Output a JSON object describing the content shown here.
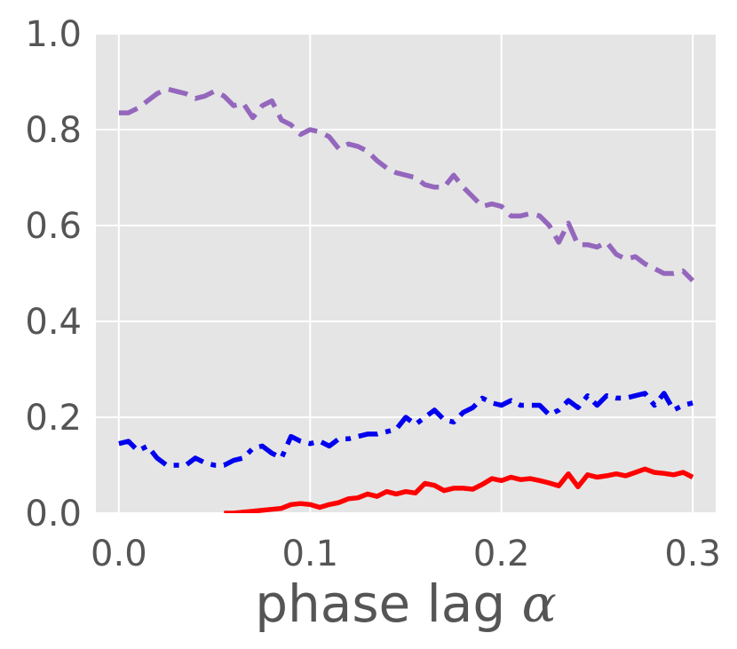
{
  "chart_data": {
    "type": "line",
    "title": "",
    "xlabel": "phase lag",
    "xlabel_symbol": "α",
    "ylabel": "",
    "xlim": [
      -0.012,
      0.312
    ],
    "ylim": [
      0.0,
      1.0
    ],
    "xticks": [
      "0.0",
      "0.1",
      "0.2",
      "0.3"
    ],
    "yticks": [
      "0.0",
      "0.2",
      "0.4",
      "0.6",
      "0.8",
      "1.0"
    ],
    "grid": true,
    "legend": "none",
    "background": "#e5e5e5",
    "series": [
      {
        "color": "#9467bd",
        "style": "dashed",
        "x": [
          0.0,
          0.005,
          0.01,
          0.015,
          0.02,
          0.025,
          0.03,
          0.035,
          0.04,
          0.045,
          0.05,
          0.055,
          0.06,
          0.065,
          0.07,
          0.075,
          0.08,
          0.085,
          0.09,
          0.095,
          0.1,
          0.105,
          0.11,
          0.115,
          0.12,
          0.125,
          0.13,
          0.135,
          0.14,
          0.145,
          0.15,
          0.155,
          0.16,
          0.165,
          0.17,
          0.175,
          0.18,
          0.185,
          0.19,
          0.195,
          0.2,
          0.205,
          0.21,
          0.215,
          0.22,
          0.225,
          0.23,
          0.235,
          0.24,
          0.245,
          0.25,
          0.255,
          0.26,
          0.265,
          0.27,
          0.275,
          0.28,
          0.285,
          0.29,
          0.295,
          0.3
        ],
        "y": [
          0.835,
          0.835,
          0.845,
          0.86,
          0.875,
          0.885,
          0.88,
          0.875,
          0.865,
          0.87,
          0.88,
          0.87,
          0.85,
          0.855,
          0.825,
          0.85,
          0.86,
          0.82,
          0.81,
          0.79,
          0.8,
          0.795,
          0.785,
          0.76,
          0.77,
          0.765,
          0.755,
          0.735,
          0.72,
          0.71,
          0.705,
          0.7,
          0.685,
          0.68,
          0.68,
          0.705,
          0.68,
          0.66,
          0.64,
          0.645,
          0.64,
          0.62,
          0.62,
          0.625,
          0.62,
          0.6,
          0.565,
          0.605,
          0.56,
          0.56,
          0.555,
          0.565,
          0.54,
          0.53,
          0.535,
          0.52,
          0.51,
          0.5,
          0.5,
          0.505,
          0.485
        ]
      },
      {
        "color": "#0000ee",
        "style": "dashdot",
        "x": [
          0.0,
          0.005,
          0.01,
          0.015,
          0.02,
          0.025,
          0.03,
          0.035,
          0.04,
          0.045,
          0.05,
          0.055,
          0.06,
          0.065,
          0.07,
          0.075,
          0.08,
          0.085,
          0.09,
          0.095,
          0.1,
          0.105,
          0.11,
          0.115,
          0.12,
          0.125,
          0.13,
          0.135,
          0.14,
          0.145,
          0.15,
          0.155,
          0.16,
          0.165,
          0.17,
          0.175,
          0.18,
          0.185,
          0.19,
          0.195,
          0.2,
          0.205,
          0.21,
          0.215,
          0.22,
          0.225,
          0.23,
          0.235,
          0.24,
          0.245,
          0.25,
          0.255,
          0.26,
          0.265,
          0.27,
          0.275,
          0.28,
          0.285,
          0.29,
          0.295,
          0.3
        ],
        "y": [
          0.145,
          0.15,
          0.13,
          0.14,
          0.115,
          0.1,
          0.1,
          0.1,
          0.115,
          0.105,
          0.1,
          0.1,
          0.11,
          0.115,
          0.135,
          0.14,
          0.125,
          0.115,
          0.16,
          0.15,
          0.145,
          0.15,
          0.14,
          0.155,
          0.155,
          0.16,
          0.165,
          0.165,
          0.17,
          0.175,
          0.2,
          0.185,
          0.2,
          0.215,
          0.195,
          0.19,
          0.21,
          0.22,
          0.24,
          0.23,
          0.225,
          0.235,
          0.225,
          0.225,
          0.225,
          0.205,
          0.215,
          0.235,
          0.22,
          0.245,
          0.225,
          0.245,
          0.24,
          0.24,
          0.245,
          0.25,
          0.225,
          0.25,
          0.215,
          0.225,
          0.23
        ]
      },
      {
        "color": "#ff0000",
        "style": "solid",
        "x": [
          0.055,
          0.06,
          0.065,
          0.07,
          0.075,
          0.08,
          0.085,
          0.09,
          0.095,
          0.1,
          0.105,
          0.11,
          0.115,
          0.12,
          0.125,
          0.13,
          0.135,
          0.14,
          0.145,
          0.15,
          0.155,
          0.16,
          0.165,
          0.17,
          0.175,
          0.18,
          0.185,
          0.19,
          0.195,
          0.2,
          0.205,
          0.21,
          0.215,
          0.22,
          0.225,
          0.23,
          0.235,
          0.24,
          0.245,
          0.25,
          0.255,
          0.26,
          0.265,
          0.27,
          0.275,
          0.28,
          0.285,
          0.29,
          0.295,
          0.3
        ],
        "y": [
          0.0,
          0.0,
          0.002,
          0.004,
          0.006,
          0.008,
          0.01,
          0.018,
          0.02,
          0.018,
          0.012,
          0.018,
          0.022,
          0.03,
          0.032,
          0.04,
          0.035,
          0.045,
          0.04,
          0.045,
          0.042,
          0.062,
          0.058,
          0.047,
          0.052,
          0.052,
          0.05,
          0.06,
          0.072,
          0.068,
          0.075,
          0.07,
          0.072,
          0.068,
          0.063,
          0.057,
          0.082,
          0.055,
          0.08,
          0.075,
          0.078,
          0.082,
          0.078,
          0.085,
          0.092,
          0.085,
          0.083,
          0.08,
          0.085,
          0.075
        ]
      }
    ]
  }
}
